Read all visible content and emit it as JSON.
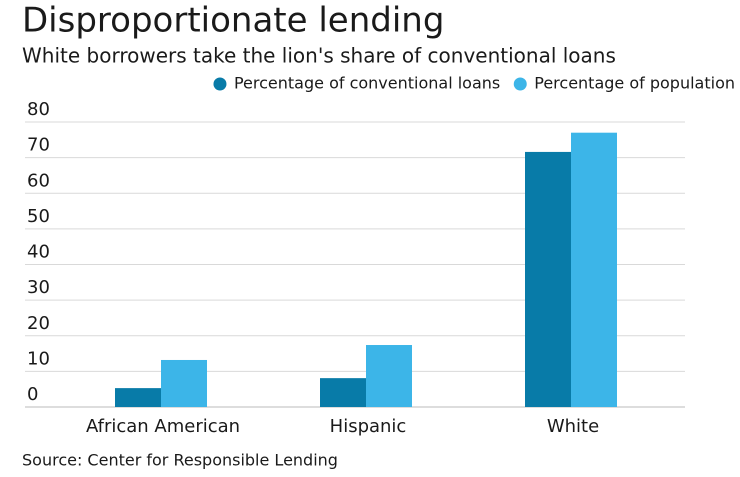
{
  "chart_data": {
    "type": "bar",
    "title": "Disproportionate lending",
    "subtitle": "White borrowers take the lion's share of conventional loans",
    "categories": [
      "African American",
      "Hispanic",
      "White"
    ],
    "series": [
      {
        "name": "Percentage of conventional loans",
        "color": "#087ba8",
        "values": [
          5.3,
          8.1,
          71.6
        ]
      },
      {
        "name": "Percentage of population",
        "color": "#3cb5e8",
        "values": [
          13.2,
          17.4,
          77.0
        ]
      }
    ],
    "ylim": [
      0,
      80
    ],
    "yticks": [
      0,
      10,
      20,
      30,
      40,
      50,
      60,
      70,
      80
    ],
    "grid": true,
    "legend": "top-right",
    "source": "Source: Center for Responsible Lending"
  }
}
